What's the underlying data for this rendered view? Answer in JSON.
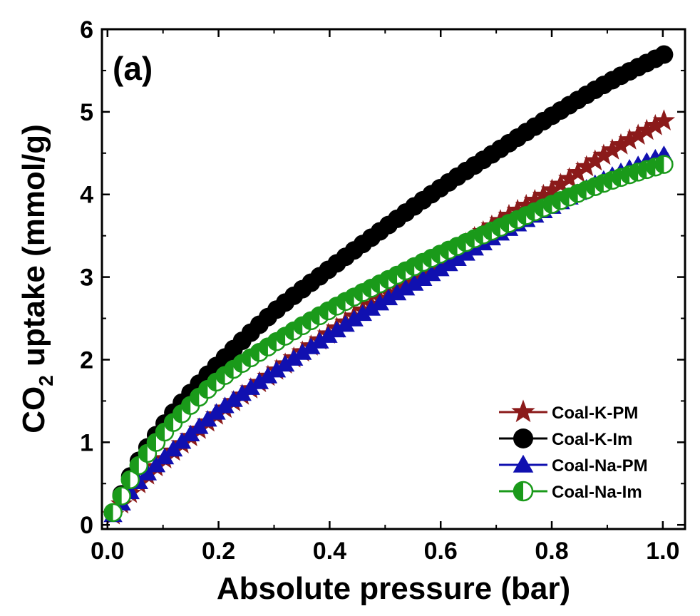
{
  "chart_data": {
    "type": "scatter",
    "panel_label": "(a)",
    "xlabel": "Absolute pressure  (bar)",
    "ylabel_main": "CO",
    "ylabel_sub": "2",
    "ylabel_rest": " uptake (mmol/g)",
    "xlim": [
      -0.01,
      1.04
    ],
    "ylim": [
      -0.05,
      6.0
    ],
    "x_ticks": [
      0.0,
      0.2,
      0.4,
      0.6,
      0.8,
      1.0
    ],
    "x_tick_labels": [
      "0.0",
      "0.2",
      "0.4",
      "0.6",
      "0.8",
      "1.0"
    ],
    "y_ticks": [
      0,
      1,
      2,
      3,
      4,
      5,
      6
    ],
    "y_tick_labels": [
      "0",
      "1",
      "2",
      "3",
      "4",
      "5",
      "6"
    ],
    "grid": false,
    "legend_position": "bottom-right",
    "series": [
      {
        "name": "Coal-K-PM",
        "marker": "star",
        "color": "#8b1a1a",
        "x": [
          0.01,
          0.05,
          0.1,
          0.15,
          0.2,
          0.3,
          0.4,
          0.5,
          0.6,
          0.7,
          0.8,
          0.9,
          1.01
        ],
        "y": [
          0.12,
          0.45,
          0.78,
          1.07,
          1.35,
          1.85,
          2.32,
          2.78,
          3.2,
          3.65,
          4.05,
          4.5,
          4.92
        ]
      },
      {
        "name": "Coal-K-Im",
        "marker": "circle",
        "color": "#000000",
        "x": [
          0.01,
          0.05,
          0.1,
          0.15,
          0.2,
          0.3,
          0.4,
          0.5,
          0.6,
          0.7,
          0.8,
          0.9,
          1.01
        ],
        "y": [
          0.15,
          0.7,
          1.2,
          1.6,
          1.95,
          2.58,
          3.1,
          3.6,
          4.08,
          4.52,
          4.95,
          5.35,
          5.72
        ]
      },
      {
        "name": "Coal-Na-PM",
        "marker": "triangle",
        "color": "#1010b0",
        "x": [
          0.01,
          0.05,
          0.1,
          0.15,
          0.2,
          0.3,
          0.4,
          0.5,
          0.6,
          0.7,
          0.8,
          0.9,
          1.01
        ],
        "y": [
          0.12,
          0.47,
          0.8,
          1.1,
          1.38,
          1.85,
          2.3,
          2.72,
          3.1,
          3.5,
          3.85,
          4.2,
          4.5
        ]
      },
      {
        "name": "Coal-Na-Im",
        "marker": "half-circle",
        "color": "#1a9a1a",
        "x": [
          0.01,
          0.05,
          0.1,
          0.15,
          0.2,
          0.3,
          0.4,
          0.5,
          0.6,
          0.7,
          0.8,
          0.9,
          1.01
        ],
        "y": [
          0.15,
          0.65,
          1.1,
          1.45,
          1.75,
          2.2,
          2.6,
          2.95,
          3.28,
          3.58,
          3.88,
          4.15,
          4.38
        ]
      }
    ]
  }
}
